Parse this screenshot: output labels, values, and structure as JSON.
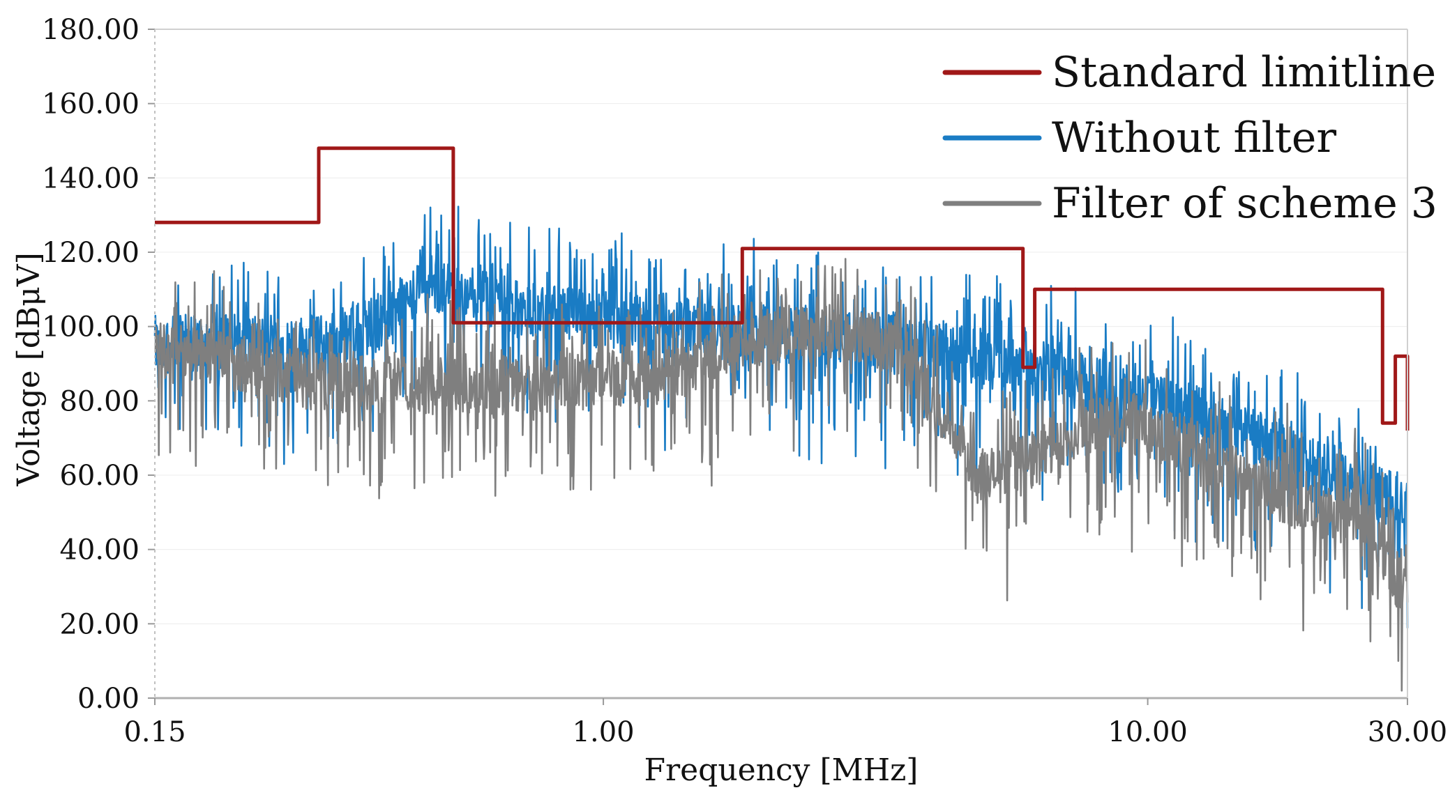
{
  "chart_data": {
    "type": "line",
    "title": "",
    "xlabel": "Frequency [MHz]",
    "ylabel": "Voltage [dBμV]",
    "xscale": "log",
    "xlim": [
      0.15,
      30.0
    ],
    "ylim": [
      0,
      180
    ],
    "x_ticks": [
      0.15,
      1.0,
      10.0,
      30.0
    ],
    "x_tick_labels": [
      "0.15",
      "1.00",
      "10.00",
      "30.00"
    ],
    "y_ticks": [
      0,
      20,
      40,
      60,
      80,
      100,
      120,
      140,
      160,
      180
    ],
    "y_tick_labels": [
      "0.00",
      "20.00",
      "40.00",
      "60.00",
      "80.00",
      "100.00",
      "120.00",
      "140.00",
      "160.00",
      "180.00"
    ],
    "legend_position": "top-right",
    "series": [
      {
        "name": "Standard limitline",
        "color": "#a01818",
        "style": "step",
        "x": [
          0.15,
          0.3,
          0.3,
          0.53,
          0.53,
          1.8,
          1.8,
          5.9,
          5.9,
          6.2,
          6.2,
          27.0,
          27.0,
          28.5,
          28.5,
          30.0,
          30.0
        ],
        "y": [
          128,
          128,
          148,
          148,
          101,
          101,
          121,
          121,
          89,
          89,
          110,
          110,
          74,
          74,
          92,
          92,
          72
        ]
      },
      {
        "name": "Without filter",
        "color": "#1a7cc4",
        "style": "noisy",
        "x": [
          0.15,
          0.2,
          0.3,
          0.4,
          0.48,
          0.53,
          0.7,
          1.0,
          1.5,
          1.8,
          2.5,
          3.0,
          4.0,
          5.0,
          6.0,
          7.0,
          9.0,
          12.0,
          15.0,
          20.0,
          25.0,
          30.0
        ],
        "y": [
          98,
          99,
          98,
          105,
          115,
          112,
          108,
          104,
          102,
          101,
          100,
          99,
          97,
          95,
          93,
          89,
          85,
          80,
          75,
          66,
          60,
          55
        ]
      },
      {
        "name": "Filter of scheme 3",
        "color": "#7f7f7f",
        "style": "noisy",
        "x": [
          0.15,
          0.2,
          0.3,
          0.4,
          0.6,
          0.8,
          1.0,
          1.5,
          1.8,
          2.5,
          3.0,
          3.5,
          4.0,
          4.5,
          5.0,
          6.0,
          7.0,
          8.0,
          10.0,
          12.0,
          15.0,
          20.0,
          25.0,
          30.0
        ],
        "y": [
          96,
          94,
          88,
          87,
          87,
          88,
          89,
          91,
          100,
          102,
          101,
          97,
          85,
          72,
          62,
          66,
          73,
          77,
          76,
          70,
          62,
          55,
          51,
          30
        ]
      }
    ]
  }
}
